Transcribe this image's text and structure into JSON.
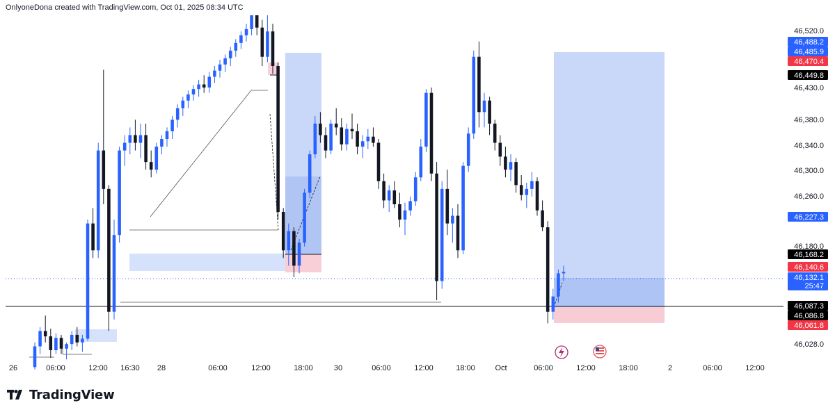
{
  "header": {
    "attribution": "OnlyoneDona created with TradingView.com, Oct 01, 2025 08:34 UTC"
  },
  "footer": {
    "brand": "TradingView"
  },
  "chart_data": {
    "type": "candlestick",
    "price_axis": {
      "ticks": [
        "46,520.0",
        "46,430.0",
        "46,380.0",
        "46,340.0",
        "46,300.0",
        "46,260.0",
        "46,180.0",
        "46,028.0"
      ],
      "labels": [
        {
          "text": "46,488.2",
          "color": "#2962ff"
        },
        {
          "text": "46,485.9",
          "color": "#2962ff"
        },
        {
          "text": "46,470.4",
          "color": "#f23645"
        },
        {
          "text": "46,449.8",
          "color": "#000000"
        },
        {
          "text": "46,227.3",
          "color": "#2962ff"
        },
        {
          "text": "46,168.2",
          "color": "#000000"
        },
        {
          "text": "46,140.6",
          "color": "#f23645"
        },
        {
          "text": "46,132.1",
          "color": "#2962ff"
        },
        {
          "text": "25:47",
          "color": "#2962ff"
        },
        {
          "text": "46,087.3",
          "color": "#000000"
        },
        {
          "text": "46,086.8",
          "color": "#000000"
        },
        {
          "text": "46,061.8",
          "color": "#f23645"
        }
      ]
    },
    "time_axis": {
      "labels": [
        "26",
        "06:00",
        "12:00",
        "16:30",
        "28",
        "06:00",
        "12:00",
        "18:00",
        "30",
        "06:00",
        "12:00",
        "18:00",
        "Oct",
        "06:00",
        "12:00",
        "18:00",
        "2",
        "06:00",
        "12:00"
      ]
    },
    "ohlc": [
      [
        46008,
        46040,
        46005,
        46035
      ],
      [
        46035,
        46060,
        46025,
        46055
      ],
      [
        46055,
        46075,
        46040,
        46048
      ],
      [
        46048,
        46058,
        46020,
        46030
      ],
      [
        46030,
        46052,
        46025,
        46046
      ],
      [
        46046,
        46050,
        46025,
        46032
      ],
      [
        46032,
        46040,
        46018,
        46038
      ],
      [
        46038,
        46055,
        46030,
        46050
      ],
      [
        46050,
        46060,
        46035,
        46040
      ],
      [
        46040,
        46050,
        46028,
        46045
      ],
      [
        46045,
        46200,
        46042,
        46195
      ],
      [
        46195,
        46215,
        46150,
        46160
      ],
      [
        46160,
        46300,
        46150,
        46290
      ],
      [
        46290,
        46395,
        46220,
        46240
      ],
      [
        46240,
        46245,
        46055,
        46080
      ],
      [
        46080,
        46200,
        46070,
        46180
      ],
      [
        46180,
        46295,
        46170,
        46290
      ],
      [
        46290,
        46310,
        46270,
        46300
      ],
      [
        46300,
        46320,
        46285,
        46310
      ],
      [
        46310,
        46330,
        46290,
        46300
      ],
      [
        46300,
        46325,
        46280,
        46310
      ],
      [
        46310,
        46325,
        46265,
        46275
      ],
      [
        46275,
        46290,
        46255,
        46265
      ],
      [
        46265,
        46300,
        46260,
        46295
      ],
      [
        46295,
        46310,
        46285,
        46305
      ],
      [
        46305,
        46320,
        46295,
        46315
      ],
      [
        46315,
        46335,
        46305,
        46330
      ],
      [
        46330,
        46350,
        46320,
        46345
      ],
      [
        46345,
        46360,
        46335,
        46355
      ],
      [
        46355,
        46368,
        46345,
        46363
      ],
      [
        46363,
        46375,
        46355,
        46370
      ],
      [
        46370,
        46382,
        46360,
        46376
      ],
      [
        46376,
        46388,
        46365,
        46372
      ],
      [
        46372,
        46392,
        46365,
        46386
      ],
      [
        46386,
        46400,
        46378,
        46394
      ],
      [
        46394,
        46408,
        46385,
        46402
      ],
      [
        46402,
        46415,
        46392,
        46410
      ],
      [
        46410,
        46425,
        46400,
        46420
      ],
      [
        46420,
        46435,
        46412,
        46430
      ],
      [
        46430,
        46445,
        46422,
        46440
      ],
      [
        46440,
        46455,
        46432,
        46448
      ],
      [
        46448,
        46500,
        46440,
        46492
      ],
      [
        46492,
        46496,
        46440,
        46450
      ],
      [
        46450,
        46460,
        46400,
        46412
      ],
      [
        46412,
        46470,
        46405,
        46445
      ],
      [
        46445,
        46455,
        46390,
        46400
      ],
      [
        46400,
        46405,
        46200,
        46210
      ],
      [
        46210,
        46215,
        46150,
        46160
      ],
      [
        46160,
        46195,
        46140,
        46185
      ],
      [
        46185,
        46190,
        46125,
        46140
      ],
      [
        46140,
        46175,
        46130,
        46170
      ],
      [
        46170,
        46240,
        46165,
        46235
      ],
      [
        46235,
        46290,
        46228,
        46285
      ],
      [
        46285,
        46335,
        46280,
        46325
      ],
      [
        46325,
        46340,
        46300,
        46310
      ],
      [
        46310,
        46320,
        46280,
        46290
      ],
      [
        46290,
        46330,
        46285,
        46325
      ],
      [
        46325,
        46345,
        46310,
        46320
      ],
      [
        46320,
        46332,
        46290,
        46298
      ],
      [
        46298,
        46325,
        46290,
        46318
      ],
      [
        46318,
        46338,
        46305,
        46315
      ],
      [
        46315,
        46325,
        46285,
        46295
      ],
      [
        46295,
        46310,
        46280,
        46302
      ],
      [
        46302,
        46318,
        46292,
        46308
      ],
      [
        46308,
        46320,
        46295,
        46300
      ],
      [
        46300,
        46305,
        46240,
        46250
      ],
      [
        46250,
        46260,
        46215,
        46225
      ],
      [
        46225,
        46245,
        46210,
        46238
      ],
      [
        46238,
        46250,
        46215,
        46220
      ],
      [
        46220,
        46235,
        46190,
        46200
      ],
      [
        46200,
        46222,
        46180,
        46212
      ],
      [
        46212,
        46230,
        46205,
        46224
      ],
      [
        46224,
        46262,
        46218,
        46255
      ],
      [
        46255,
        46305,
        46250,
        46295
      ],
      [
        46295,
        46370,
        46288,
        46365
      ],
      [
        46365,
        46372,
        46250,
        46260
      ],
      [
        46260,
        46275,
        46095,
        46120
      ],
      [
        46120,
        46250,
        46110,
        46240
      ],
      [
        46240,
        46265,
        46180,
        46195
      ],
      [
        46195,
        46215,
        46170,
        46205
      ],
      [
        46205,
        46220,
        46150,
        46160
      ],
      [
        46160,
        46275,
        46155,
        46270
      ],
      [
        46270,
        46320,
        46262,
        46312
      ],
      [
        46312,
        46420,
        46305,
        46412
      ],
      [
        46412,
        46432,
        46320,
        46340
      ],
      [
        46340,
        46365,
        46320,
        46355
      ],
      [
        46355,
        46360,
        46310,
        46325
      ],
      [
        46325,
        46330,
        46290,
        46300
      ],
      [
        46300,
        46310,
        46270,
        46282
      ],
      [
        46282,
        46295,
        46255,
        46265
      ],
      [
        46265,
        46285,
        46250,
        46275
      ],
      [
        46275,
        46280,
        46235,
        46245
      ],
      [
        46245,
        46258,
        46225,
        46232
      ],
      [
        46232,
        46248,
        46215,
        46240
      ],
      [
        46240,
        46262,
        46230,
        46250
      ],
      [
        46250,
        46255,
        46205,
        46212
      ],
      [
        46212,
        46225,
        46185,
        46190
      ],
      [
        46190,
        46198,
        46065,
        46080
      ],
      [
        46080,
        46110,
        46070,
        46100
      ],
      [
        46100,
        46135,
        46092,
        46130
      ],
      [
        46130,
        46140,
        46120,
        46132
      ]
    ]
  }
}
